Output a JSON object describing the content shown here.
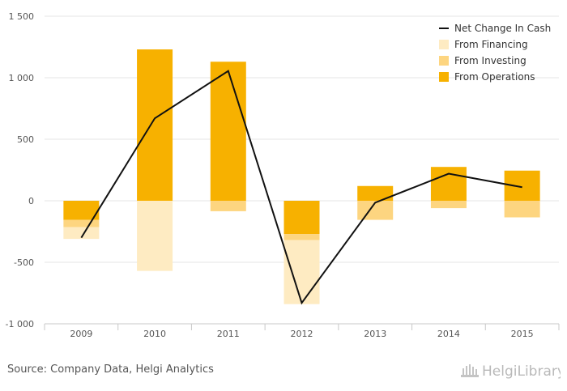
{
  "chart_data": {
    "type": "bar",
    "stacked": true,
    "categories": [
      "2009",
      "2010",
      "2011",
      "2012",
      "2013",
      "2014",
      "2015"
    ],
    "series": [
      {
        "name": "From Operations",
        "kind": "bar",
        "color": "#f7b100",
        "values": [
          -155,
          1230,
          1130,
          -270,
          120,
          275,
          245
        ]
      },
      {
        "name": "From Investing",
        "kind": "bar",
        "color": "#fdd580",
        "values": [
          -60,
          0,
          -85,
          -50,
          -155,
          -60,
          -135
        ]
      },
      {
        "name": "From Financing",
        "kind": "bar",
        "color": "#feebc2",
        "values": [
          -95,
          -570,
          0,
          -520,
          0,
          0,
          0
        ]
      },
      {
        "name": "Net Change In Cash",
        "kind": "line",
        "color": "#111111",
        "values": [
          -300,
          670,
          1055,
          -830,
          -15,
          220,
          110
        ]
      }
    ],
    "yticks": [
      -1000,
      -500,
      0,
      500,
      1000,
      1500
    ],
    "ytick_labels": [
      "-1 000",
      "-500",
      "0",
      "500",
      "1 000",
      "1 500"
    ],
    "ylim": [
      -1000,
      1500
    ],
    "grid": true,
    "legend_position": "top-right",
    "legend_order": [
      "Net Change In Cash",
      "From Financing",
      "From Investing",
      "From Operations"
    ]
  },
  "footer": {
    "source": "Source: Company Data, Helgi Analytics",
    "logo_text": "HelgiLibrary"
  }
}
